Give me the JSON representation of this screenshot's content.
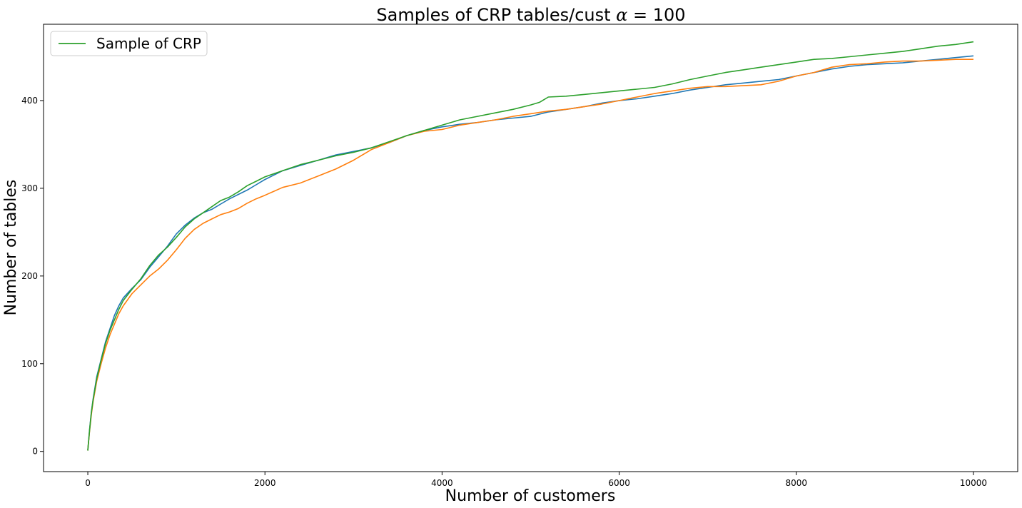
{
  "chart_data": {
    "type": "line",
    "title": "Samples of CRP tables/cust α = 100",
    "title_prefix": "Samples of CRP tables/cust ",
    "title_symbol": "α",
    "title_suffix": " = 100",
    "xlabel": "Number of customers",
    "ylabel": "Number of tables",
    "xlim": [
      -500,
      10500
    ],
    "ylim": [
      -23,
      487
    ],
    "xticks": [
      0,
      2000,
      4000,
      6000,
      8000,
      10000
    ],
    "yticks": [
      0,
      100,
      200,
      300,
      400
    ],
    "grid": false,
    "legend": {
      "position": "upper-left",
      "entries": [
        "Sample of CRP"
      ]
    },
    "series": [
      {
        "color": "#1f77b4",
        "points": [
          [
            0,
            1
          ],
          [
            20,
            25
          ],
          [
            40,
            45
          ],
          [
            60,
            60
          ],
          [
            100,
            85
          ],
          [
            150,
            105
          ],
          [
            200,
            125
          ],
          [
            250,
            140
          ],
          [
            300,
            155
          ],
          [
            350,
            166
          ],
          [
            400,
            175
          ],
          [
            500,
            186
          ],
          [
            600,
            196
          ],
          [
            700,
            210
          ],
          [
            800,
            222
          ],
          [
            900,
            234
          ],
          [
            1000,
            248
          ],
          [
            1100,
            258
          ],
          [
            1200,
            266
          ],
          [
            1300,
            272
          ],
          [
            1400,
            276
          ],
          [
            1500,
            282
          ],
          [
            1600,
            288
          ],
          [
            1700,
            293
          ],
          [
            1800,
            298
          ],
          [
            1900,
            304
          ],
          [
            2000,
            310
          ],
          [
            2200,
            320
          ],
          [
            2400,
            326
          ],
          [
            2600,
            332
          ],
          [
            2800,
            338
          ],
          [
            3000,
            342
          ],
          [
            3200,
            346
          ],
          [
            3400,
            352
          ],
          [
            3600,
            360
          ],
          [
            3800,
            366
          ],
          [
            4000,
            370
          ],
          [
            4200,
            373
          ],
          [
            4400,
            375
          ],
          [
            4600,
            378
          ],
          [
            4800,
            380
          ],
          [
            5000,
            382
          ],
          [
            5200,
            387
          ],
          [
            5400,
            390
          ],
          [
            5600,
            393
          ],
          [
            5800,
            397
          ],
          [
            6000,
            400
          ],
          [
            6200,
            402
          ],
          [
            6400,
            405
          ],
          [
            6600,
            408
          ],
          [
            6800,
            412
          ],
          [
            7000,
            415
          ],
          [
            7200,
            418
          ],
          [
            7400,
            420
          ],
          [
            7600,
            422
          ],
          [
            7800,
            424
          ],
          [
            8000,
            428
          ],
          [
            8200,
            432
          ],
          [
            8400,
            436
          ],
          [
            8600,
            439
          ],
          [
            8800,
            441
          ],
          [
            9000,
            442
          ],
          [
            9200,
            443
          ],
          [
            9400,
            445
          ],
          [
            9600,
            447
          ],
          [
            9800,
            449
          ],
          [
            10000,
            451
          ]
        ]
      },
      {
        "color": "#ff7f0e",
        "points": [
          [
            0,
            1
          ],
          [
            20,
            23
          ],
          [
            40,
            42
          ],
          [
            60,
            57
          ],
          [
            100,
            80
          ],
          [
            150,
            100
          ],
          [
            200,
            118
          ],
          [
            250,
            133
          ],
          [
            300,
            145
          ],
          [
            350,
            157
          ],
          [
            400,
            166
          ],
          [
            500,
            180
          ],
          [
            600,
            190
          ],
          [
            700,
            200
          ],
          [
            800,
            208
          ],
          [
            900,
            218
          ],
          [
            1000,
            230
          ],
          [
            1100,
            243
          ],
          [
            1200,
            253
          ],
          [
            1300,
            260
          ],
          [
            1400,
            265
          ],
          [
            1500,
            270
          ],
          [
            1600,
            273
          ],
          [
            1700,
            277
          ],
          [
            1800,
            283
          ],
          [
            1900,
            288
          ],
          [
            2000,
            292
          ],
          [
            2200,
            301
          ],
          [
            2400,
            306
          ],
          [
            2600,
            314
          ],
          [
            2800,
            322
          ],
          [
            3000,
            332
          ],
          [
            3200,
            344
          ],
          [
            3400,
            352
          ],
          [
            3600,
            360
          ],
          [
            3800,
            365
          ],
          [
            4000,
            367
          ],
          [
            4200,
            372
          ],
          [
            4400,
            375
          ],
          [
            4600,
            378
          ],
          [
            4800,
            382
          ],
          [
            5000,
            385
          ],
          [
            5200,
            388
          ],
          [
            5400,
            390
          ],
          [
            5600,
            393
          ],
          [
            5800,
            396
          ],
          [
            6000,
            400
          ],
          [
            6200,
            404
          ],
          [
            6400,
            408
          ],
          [
            6600,
            411
          ],
          [
            6800,
            414
          ],
          [
            7000,
            416
          ],
          [
            7200,
            416
          ],
          [
            7400,
            417
          ],
          [
            7600,
            418
          ],
          [
            7800,
            422
          ],
          [
            8000,
            428
          ],
          [
            8200,
            432
          ],
          [
            8400,
            438
          ],
          [
            8600,
            441
          ],
          [
            8800,
            442
          ],
          [
            9000,
            444
          ],
          [
            9200,
            445
          ],
          [
            9400,
            445
          ],
          [
            9600,
            446
          ],
          [
            9800,
            447
          ],
          [
            10000,
            447
          ]
        ]
      },
      {
        "name": "Sample of CRP",
        "color": "#2ca02c",
        "points": [
          [
            0,
            1
          ],
          [
            20,
            24
          ],
          [
            40,
            44
          ],
          [
            60,
            59
          ],
          [
            100,
            83
          ],
          [
            150,
            104
          ],
          [
            200,
            123
          ],
          [
            250,
            138
          ],
          [
            300,
            150
          ],
          [
            350,
            162
          ],
          [
            400,
            172
          ],
          [
            500,
            185
          ],
          [
            600,
            197
          ],
          [
            700,
            212
          ],
          [
            800,
            224
          ],
          [
            900,
            233
          ],
          [
            1000,
            244
          ],
          [
            1100,
            256
          ],
          [
            1200,
            265
          ],
          [
            1300,
            272
          ],
          [
            1400,
            279
          ],
          [
            1500,
            286
          ],
          [
            1600,
            290
          ],
          [
            1700,
            296
          ],
          [
            1800,
            303
          ],
          [
            1900,
            308
          ],
          [
            2000,
            313
          ],
          [
            2200,
            320
          ],
          [
            2400,
            327
          ],
          [
            2600,
            332
          ],
          [
            2800,
            337
          ],
          [
            3000,
            341
          ],
          [
            3200,
            346
          ],
          [
            3400,
            353
          ],
          [
            3600,
            360
          ],
          [
            3800,
            366
          ],
          [
            4000,
            372
          ],
          [
            4200,
            378
          ],
          [
            4400,
            382
          ],
          [
            4600,
            386
          ],
          [
            4800,
            390
          ],
          [
            5000,
            395
          ],
          [
            5100,
            398
          ],
          [
            5200,
            404
          ],
          [
            5400,
            405
          ],
          [
            5600,
            407
          ],
          [
            5800,
            409
          ],
          [
            6000,
            411
          ],
          [
            6200,
            413
          ],
          [
            6400,
            415
          ],
          [
            6600,
            419
          ],
          [
            6800,
            424
          ],
          [
            7000,
            428
          ],
          [
            7200,
            432
          ],
          [
            7400,
            435
          ],
          [
            7600,
            438
          ],
          [
            7800,
            441
          ],
          [
            8000,
            444
          ],
          [
            8200,
            447
          ],
          [
            8400,
            448
          ],
          [
            8600,
            450
          ],
          [
            8800,
            452
          ],
          [
            9000,
            454
          ],
          [
            9200,
            456
          ],
          [
            9400,
            459
          ],
          [
            9600,
            462
          ],
          [
            9800,
            464
          ],
          [
            10000,
            467
          ]
        ]
      }
    ]
  }
}
